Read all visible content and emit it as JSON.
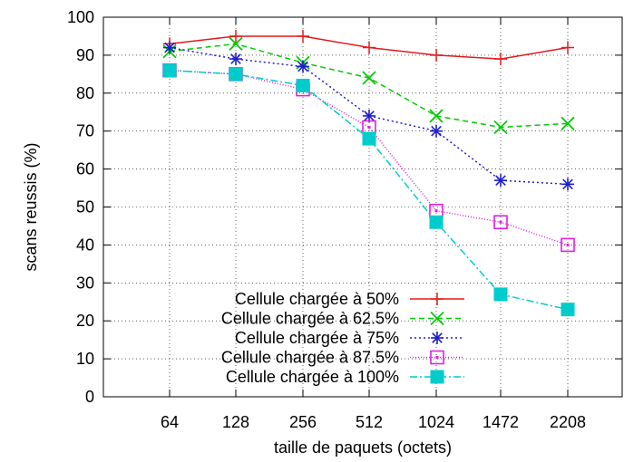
{
  "chart_data": {
    "type": "line",
    "title": "",
    "xlabel": "taille de paquets (octets)",
    "ylabel": "scans reussis (%)",
    "categories": [
      "64",
      "128",
      "256",
      "512",
      "1024",
      "1472",
      "2208"
    ],
    "ylim": [
      0,
      100
    ],
    "yticks": [
      0,
      10,
      20,
      30,
      40,
      50,
      60,
      70,
      80,
      90,
      100
    ],
    "grid": true,
    "legend_position": "bottom-center",
    "series": [
      {
        "name": "Cellule chargée à 50%",
        "values": [
          93,
          95,
          95,
          92,
          90,
          89,
          92
        ],
        "color": "#e41a1c",
        "dash": "",
        "marker": "plus"
      },
      {
        "name": "Cellule chargée à 62.5%",
        "values": [
          91,
          93,
          88,
          84,
          74,
          71,
          72
        ],
        "color": "#00cc00",
        "dash": "6,4",
        "marker": "cross"
      },
      {
        "name": "Cellule chargée à 75%",
        "values": [
          92,
          89,
          87,
          74,
          70,
          57,
          56
        ],
        "color": "#1f1fcc",
        "dash": "2,3",
        "marker": "star"
      },
      {
        "name": "Cellule chargée à 87.5%",
        "values": [
          86,
          85,
          81,
          71,
          49,
          46,
          40
        ],
        "color": "#e020e0",
        "dash": "1,2",
        "marker": "open-square"
      },
      {
        "name": "Cellule chargée à 100%",
        "values": [
          86,
          85,
          82,
          68,
          46,
          27,
          23
        ],
        "color": "#00cccc",
        "dash": "8,3,2,3",
        "marker": "filled-square"
      }
    ]
  }
}
